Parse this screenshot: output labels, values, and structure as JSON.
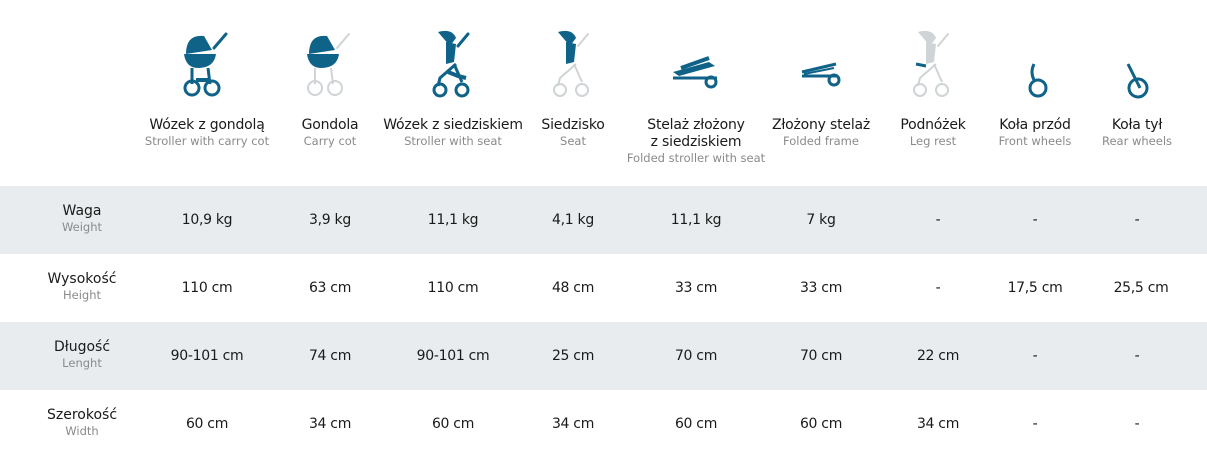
{
  "colors": {
    "accent": "#0f6288",
    "muted_icon": "#cfd4d7",
    "row_shade": "#e8ecef"
  },
  "columns": [
    {
      "icon": "stroller-carry-cot-icon",
      "pl": "Wózek z gondolą",
      "en": "Stroller with carry cot"
    },
    {
      "icon": "carry-cot-icon",
      "pl": "Gondola",
      "en": "Carry cot"
    },
    {
      "icon": "stroller-seat-icon",
      "pl": "Wózek z siedziskiem",
      "en": "Stroller with seat"
    },
    {
      "icon": "seat-icon",
      "pl": "Siedzisko",
      "en": "Seat"
    },
    {
      "icon": "folded-stroller-seat-icon",
      "pl": "Stelaż złożony",
      "pl2": "z siedziskiem",
      "en": "Folded stroller with seat"
    },
    {
      "icon": "folded-frame-icon",
      "pl": "Złożony stelaż",
      "en": "Folded frame"
    },
    {
      "icon": "leg-rest-icon",
      "pl": "Podnóżek",
      "en": "Leg rest"
    },
    {
      "icon": "front-wheel-icon",
      "pl": "Koła przód",
      "en": "Front wheels"
    },
    {
      "icon": "rear-wheel-icon",
      "pl": "Koła tył",
      "en": "Rear wheels"
    }
  ],
  "rows": [
    {
      "pl": "Waga",
      "en": "Weight",
      "values": [
        "10,9 kg",
        "3,9 kg",
        "11,1 kg",
        "4,1 kg",
        "11,1 kg",
        "7 kg",
        "-",
        "-",
        "-"
      ]
    },
    {
      "pl": "Wysokość",
      "en": "Height",
      "values": [
        "110 cm",
        "63 cm",
        "110 cm",
        "48 cm",
        "33 cm",
        "33 cm",
        "-",
        "17,5 cm",
        "25,5 cm"
      ]
    },
    {
      "pl": "Długość",
      "en": "Lenght",
      "values": [
        "90-101 cm",
        "74 cm",
        "90-101 cm",
        "25 cm",
        "70 cm",
        "70 cm",
        "22 cm",
        "-",
        "-"
      ]
    },
    {
      "pl": "Szerokość",
      "en": "Width",
      "values": [
        "60 cm",
        "34 cm",
        "60 cm",
        "34 cm",
        "60 cm",
        "60 cm",
        "34 cm",
        "-",
        "-"
      ]
    }
  ]
}
